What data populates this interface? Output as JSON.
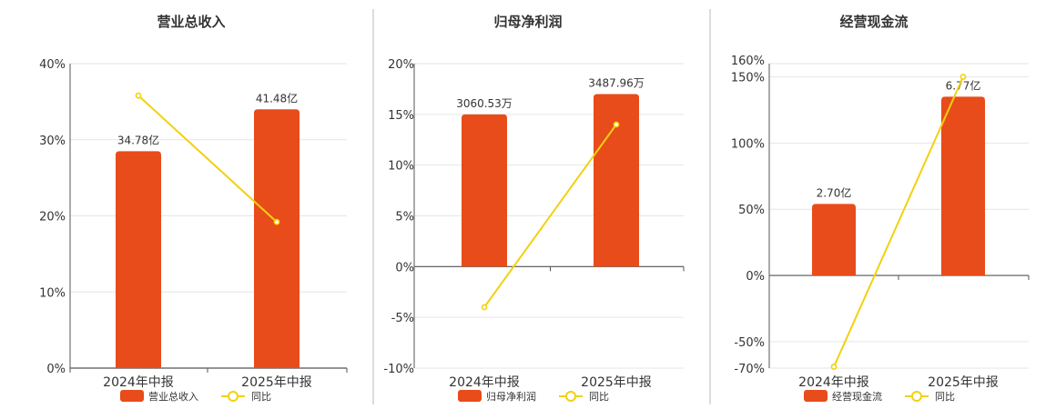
{
  "colors": {
    "bar": "#e84c1a",
    "line": "#f2d10f",
    "axis": "#555555",
    "grid": "#e6e6e6",
    "divider": "#bbbbbb",
    "title": "#333333",
    "text": "#333333"
  },
  "legend": {
    "line_label": "同比"
  },
  "chart_data": [
    {
      "type": "bar",
      "title": "营业总收入",
      "categories": [
        "2024年中报",
        "2025年中报"
      ],
      "bar_axis": "primary",
      "ylim": [
        0,
        40
      ],
      "yticks": [
        0,
        10,
        20,
        30,
        40
      ],
      "ytick_labels": [
        "0%",
        "10%",
        "20%",
        "30%",
        "40%"
      ],
      "series": [
        {
          "name": "营业总收入",
          "kind": "bar",
          "values": [
            28.5,
            34.0
          ],
          "labels": [
            "34.78亿",
            "41.48亿"
          ]
        },
        {
          "name": "同比",
          "kind": "line",
          "values": [
            35.8,
            19.2
          ]
        }
      ],
      "grid": true,
      "legend_position": "bottom"
    },
    {
      "type": "bar",
      "title": "归母净利润",
      "categories": [
        "2024年中报",
        "2025年中报"
      ],
      "ylim": [
        -10,
        20
      ],
      "yticks": [
        -10,
        -5,
        0,
        5,
        10,
        15,
        20
      ],
      "ytick_labels": [
        "-10%",
        "-5%",
        "0%",
        "5%",
        "10%",
        "15%",
        "20%"
      ],
      "series": [
        {
          "name": "归母净利润",
          "kind": "bar",
          "values": [
            15.0,
            17.0
          ],
          "labels": [
            "3060.53万",
            "3487.96万"
          ]
        },
        {
          "name": "同比",
          "kind": "line",
          "values": [
            -4.0,
            14.0
          ]
        }
      ],
      "grid": true,
      "legend_position": "bottom"
    },
    {
      "type": "bar",
      "title": "经营现金流",
      "categories": [
        "2024年中报",
        "2025年中报"
      ],
      "ylim": [
        -70,
        160
      ],
      "yticks": [
        -70,
        -50,
        0,
        50,
        100,
        150,
        160
      ],
      "ytick_labels": [
        "-70%",
        "-50%",
        "0%",
        "50%",
        "100%",
        "150%",
        "160%"
      ],
      "series": [
        {
          "name": "经营现金流",
          "kind": "bar",
          "values": [
            54,
            135
          ],
          "labels": [
            "2.70亿",
            "6.77亿"
          ]
        },
        {
          "name": "同比",
          "kind": "line",
          "values": [
            -69,
            150
          ]
        }
      ],
      "grid": true,
      "legend_position": "bottom"
    }
  ]
}
